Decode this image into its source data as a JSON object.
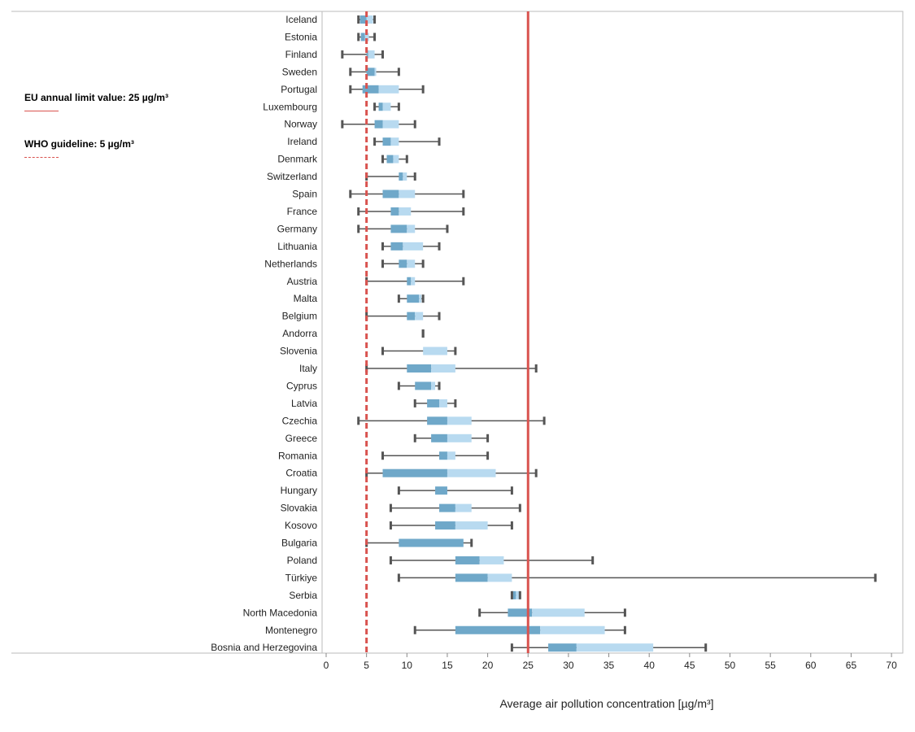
{
  "chart_data": {
    "type": "box",
    "xlabel": "Average air pollution concentration [µg/m³]",
    "xlim": [
      0,
      70
    ],
    "xticks": [
      0,
      5,
      10,
      15,
      20,
      25,
      30,
      35,
      40,
      45,
      50,
      55,
      60,
      65,
      70
    ],
    "reference_lines": [
      {
        "label": "EU annual limit value: 25 µg/m³",
        "value": 25,
        "style": "solid",
        "color": "#d9534f"
      },
      {
        "label": "WHO guideline: 5 µg/m³",
        "value": 5,
        "style": "dashed",
        "color": "#d9534f"
      }
    ],
    "colors": {
      "lower_box": "#6fa8c9",
      "upper_box": "#b8daf0",
      "whisker": "#555555",
      "reference": "#d9534f"
    },
    "countries": [
      {
        "name": "Iceland",
        "min": 4,
        "q1": 4.2,
        "median": 5,
        "q3": 5.8,
        "max": 6
      },
      {
        "name": "Estonia",
        "min": 4,
        "q1": 4.3,
        "median": 4.8,
        "q3": 5.3,
        "max": 6
      },
      {
        "name": "Finland",
        "min": 2,
        "q1": 5,
        "median": 5.2,
        "q3": 6,
        "max": 7
      },
      {
        "name": "Sweden",
        "min": 3,
        "q1": 5,
        "median": 6,
        "q3": 6.2,
        "max": 9
      },
      {
        "name": "Portugal",
        "min": 3,
        "q1": 4.5,
        "median": 6.5,
        "q3": 9,
        "max": 12
      },
      {
        "name": "Luxembourg",
        "min": 6,
        "q1": 6.5,
        "median": 7,
        "q3": 8,
        "max": 9
      },
      {
        "name": "Norway",
        "min": 2,
        "q1": 6,
        "median": 7,
        "q3": 9,
        "max": 11
      },
      {
        "name": "Ireland",
        "min": 6,
        "q1": 7,
        "median": 8,
        "q3": 9,
        "max": 14
      },
      {
        "name": "Denmark",
        "min": 7,
        "q1": 7.5,
        "median": 8.3,
        "q3": 9,
        "max": 10
      },
      {
        "name": "Switzerland",
        "min": 5,
        "q1": 9,
        "median": 9.5,
        "q3": 10,
        "max": 11
      },
      {
        "name": "Spain",
        "min": 3,
        "q1": 7,
        "median": 9,
        "q3": 11,
        "max": 17
      },
      {
        "name": "France",
        "min": 4,
        "q1": 8,
        "median": 9,
        "q3": 10.5,
        "max": 17
      },
      {
        "name": "Germany",
        "min": 4,
        "q1": 8,
        "median": 10,
        "q3": 11,
        "max": 15
      },
      {
        "name": "Lithuania",
        "min": 7,
        "q1": 8,
        "median": 9.5,
        "q3": 12,
        "max": 14
      },
      {
        "name": "Netherlands",
        "min": 7,
        "q1": 9,
        "median": 10,
        "q3": 11,
        "max": 12
      },
      {
        "name": "Austria",
        "min": 5,
        "q1": 10,
        "median": 10.5,
        "q3": 11,
        "max": 17
      },
      {
        "name": "Malta",
        "min": 9,
        "q1": 10,
        "median": 11.5,
        "q3": 11.8,
        "max": 12
      },
      {
        "name": "Belgium",
        "min": 5,
        "q1": 10,
        "median": 11,
        "q3": 12,
        "max": 14
      },
      {
        "name": "Andorra",
        "min": 12,
        "q1": 12,
        "median": 12,
        "q3": 12,
        "max": 12
      },
      {
        "name": "Slovenia",
        "min": 7,
        "q1": 12,
        "median": 12,
        "q3": 15,
        "max": 16
      },
      {
        "name": "Italy",
        "min": 5,
        "q1": 10,
        "median": 13,
        "q3": 16,
        "max": 26
      },
      {
        "name": "Cyprus",
        "min": 9,
        "q1": 11,
        "median": 13,
        "q3": 13.5,
        "max": 14
      },
      {
        "name": "Latvia",
        "min": 11,
        "q1": 12.5,
        "median": 14,
        "q3": 15,
        "max": 16
      },
      {
        "name": "Czechia",
        "min": 4,
        "q1": 12.5,
        "median": 15,
        "q3": 18,
        "max": 27
      },
      {
        "name": "Greece",
        "min": 11,
        "q1": 13,
        "median": 15,
        "q3": 18,
        "max": 20
      },
      {
        "name": "Romania",
        "min": 7,
        "q1": 14,
        "median": 15,
        "q3": 16,
        "max": 20
      },
      {
        "name": "Croatia",
        "min": 5,
        "q1": 7,
        "median": 15,
        "q3": 21,
        "max": 26
      },
      {
        "name": "Hungary",
        "min": 9,
        "q1": 13.5,
        "median": 15,
        "q3": 15,
        "max": 23
      },
      {
        "name": "Slovakia",
        "min": 8,
        "q1": 14,
        "median": 16,
        "q3": 18,
        "max": 24
      },
      {
        "name": "Kosovo",
        "min": 8,
        "q1": 13.5,
        "median": 16,
        "q3": 20,
        "max": 23
      },
      {
        "name": "Bulgaria",
        "min": 5,
        "q1": 9,
        "median": 17,
        "q3": 17,
        "max": 18
      },
      {
        "name": "Poland",
        "min": 8,
        "q1": 16,
        "median": 19,
        "q3": 22,
        "max": 33
      },
      {
        "name": "Türkiye",
        "min": 9,
        "q1": 16,
        "median": 20,
        "q3": 23,
        "max": 68
      },
      {
        "name": "Serbia",
        "min": 23,
        "q1": 23,
        "median": 23.5,
        "q3": 24,
        "max": 24
      },
      {
        "name": "North Macedonia",
        "min": 19,
        "q1": 22.5,
        "median": 25.5,
        "q3": 32,
        "max": 37
      },
      {
        "name": "Montenegro",
        "min": 11,
        "q1": 16,
        "median": 26.5,
        "q3": 34.5,
        "max": 37
      },
      {
        "name": "Bosnia and Herzegovina",
        "min": 23,
        "q1": 27.5,
        "median": 31,
        "q3": 40.5,
        "max": 47
      }
    ]
  }
}
